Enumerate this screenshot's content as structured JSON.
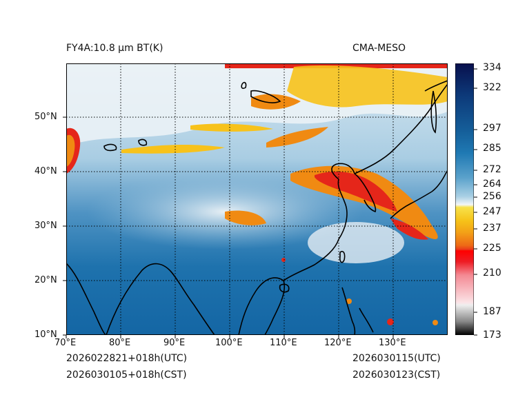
{
  "header": {
    "product_title": "FY4A:10.8 µm BT(K)",
    "model_label": "CMA-MESO"
  },
  "footer": {
    "init_utc": "2026022821+018h(UTC)",
    "init_cst": "2026030105+018h(CST)",
    "valid_utc": "2026030115(UTC)",
    "valid_cst": "2026030123(CST)"
  },
  "map": {
    "lon_ticks": [
      "70°E",
      "80°E",
      "90°E",
      "100°E",
      "110°E",
      "120°E",
      "130°E"
    ],
    "lat_ticks": [
      "10°N",
      "20°N",
      "30°N",
      "40°N",
      "50°N"
    ],
    "lon_range": [
      70,
      140
    ],
    "lat_range": [
      10,
      60
    ]
  },
  "colorbar": {
    "labels": [
      "334",
      "322",
      "297",
      "285",
      "272",
      "264",
      "256",
      "247",
      "237",
      "225",
      "210",
      "187",
      "173"
    ]
  },
  "colors": {
    "ocean_warm": "#1a6fae",
    "ocean_deep": "#0f5c98",
    "land_mid": "#6fa8cf",
    "cloud_white": "#f1f5f8",
    "cloud_yellow": "#f7c21b",
    "cloud_orange": "#f08a12",
    "cloud_red": "#e5261a",
    "coast": "#000000"
  }
}
